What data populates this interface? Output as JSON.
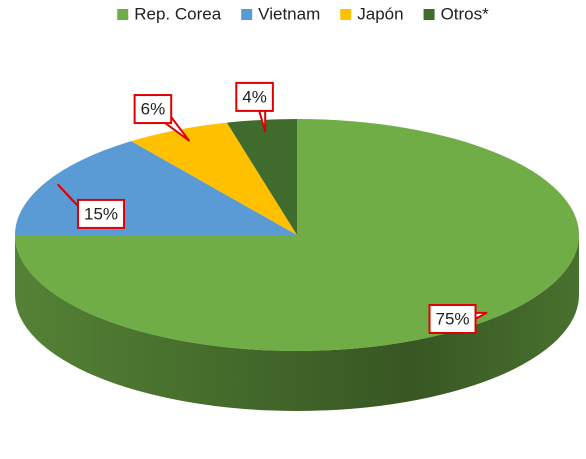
{
  "chart_data": {
    "type": "pie",
    "categories": [
      "Rep. Corea",
      "Vietnam",
      "Japón",
      "Otros*"
    ],
    "values": [
      75,
      15,
      6,
      4
    ],
    "value_labels": [
      "75%",
      "15%",
      "6%",
      "4%"
    ],
    "colors": [
      "#70ad47",
      "#5b9bd5",
      "#ffc000",
      "#3f6b2c"
    ],
    "legend": "top"
  }
}
